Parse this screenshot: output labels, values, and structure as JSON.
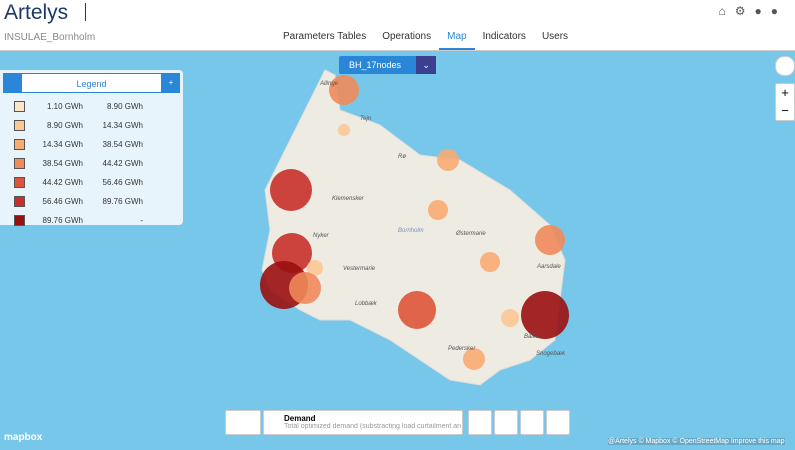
{
  "header": {
    "brand": "Artelys",
    "project": "INSULAE_Bornholm"
  },
  "nav": [
    "Parameters Tables",
    "Operations",
    "Map",
    "Indicators",
    "Users"
  ],
  "map": {
    "dataset": "BH_17nodes",
    "places": [
      "Allinge",
      "Tejn",
      "Rø",
      "Klemensker",
      "Bornholm",
      "Østermarie",
      "Nyker",
      "Vestermarie",
      "Aarsdale",
      "Lobbæk",
      "Pedersker",
      "Balka",
      "Snogebæk"
    ]
  },
  "legend": {
    "title": "Legend",
    "rows": [
      [
        "1.10 GWh",
        "8.90 GWh"
      ],
      [
        "8.90 GWh",
        "14.34 GWh"
      ],
      [
        "14.34 GWh",
        "38.54 GWh"
      ],
      [
        "38.54 GWh",
        "44.42 GWh"
      ],
      [
        "44.42 GWh",
        "56.46 GWh"
      ],
      [
        "56.46 GWh",
        "89.76 GWh"
      ],
      [
        "89.76 GWh",
        "-"
      ]
    ]
  },
  "layer": {
    "name": "Demand",
    "description": "Total optimized demand (substracting load curtailment an"
  },
  "attribution": {
    "logo": "mapbox",
    "credits": "@Artelys © Mapbox © OpenStreetMap Improve this map"
  }
}
